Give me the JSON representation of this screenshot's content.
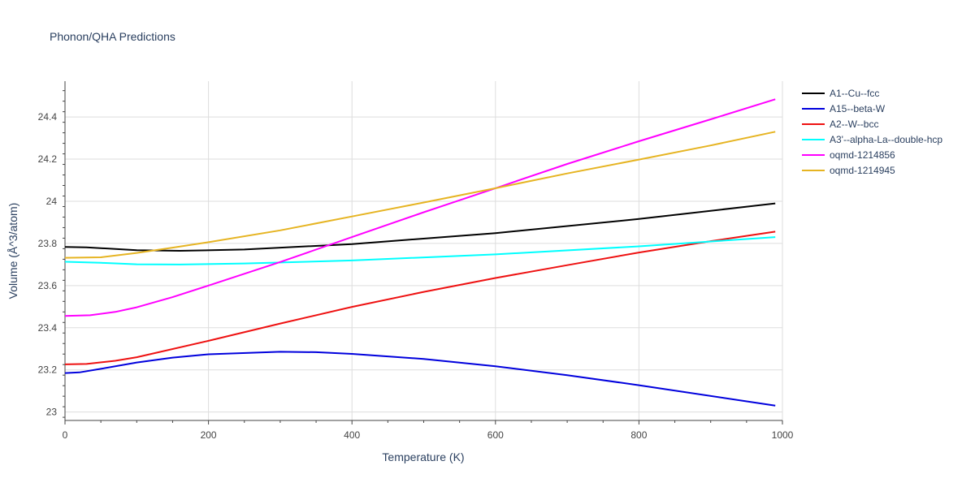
{
  "chart_data": {
    "type": "line",
    "title": "Phonon/QHA Predictions",
    "xlabel": "Temperature (K)",
    "ylabel": "Volume (Å^3/atom)",
    "xlim": [
      0,
      1000
    ],
    "ylim": [
      22.96,
      24.57
    ],
    "xticks": [
      0,
      200,
      400,
      600,
      800,
      1000
    ],
    "yticks": [
      23,
      23.2,
      23.4,
      23.6,
      23.8,
      24,
      24.2,
      24.4
    ],
    "xtick_labels": [
      "0",
      "200",
      "400",
      "600",
      "800",
      "1000"
    ],
    "ytick_labels": [
      "23",
      "23.2",
      "23.4",
      "23.6",
      "23.8",
      "24",
      "24.2",
      "24.4"
    ],
    "grid": true,
    "legend_position": "right",
    "series": [
      {
        "name": "A1--Cu--fcc",
        "color": "#000000",
        "x": [
          0,
          30,
          100,
          160,
          250,
          400,
          600,
          800,
          990
        ],
        "y": [
          23.783,
          23.781,
          23.768,
          23.765,
          23.771,
          23.797,
          23.849,
          23.916,
          23.99
        ]
      },
      {
        "name": "A15--beta-W",
        "color": "#0000dd",
        "x": [
          0,
          20,
          50,
          100,
          150,
          200,
          300,
          350,
          400,
          500,
          600,
          700,
          800,
          990
        ],
        "y": [
          23.185,
          23.188,
          23.205,
          23.235,
          23.258,
          23.274,
          23.286,
          23.284,
          23.276,
          23.252,
          23.217,
          23.175,
          23.127,
          23.03
        ]
      },
      {
        "name": "A2--W--bcc",
        "color": "#ee1111",
        "x": [
          0,
          30,
          70,
          100,
          200,
          300,
          400,
          500,
          600,
          700,
          800,
          900,
          990
        ],
        "y": [
          23.226,
          23.228,
          23.243,
          23.26,
          23.338,
          23.42,
          23.499,
          23.57,
          23.636,
          23.697,
          23.757,
          23.811,
          23.856
        ]
      },
      {
        "name": "A3'--alpha-La--double-hcp",
        "color": "#00ffff",
        "x": [
          0,
          50,
          100,
          160,
          250,
          400,
          600,
          800,
          990
        ],
        "y": [
          23.713,
          23.708,
          23.701,
          23.7,
          23.705,
          23.719,
          23.748,
          23.786,
          23.83
        ]
      },
      {
        "name": "oqmd-1214856",
        "color": "#ff00ff",
        "x": [
          0,
          35,
          70,
          100,
          150,
          200,
          300,
          400,
          500,
          600,
          700,
          800,
          900,
          990
        ],
        "y": [
          23.456,
          23.459,
          23.475,
          23.497,
          23.545,
          23.6,
          23.712,
          23.83,
          23.948,
          24.062,
          24.177,
          24.285,
          24.389,
          24.484
        ]
      },
      {
        "name": "oqmd-1214945",
        "color": "#e6b422",
        "x": [
          0,
          50,
          100,
          150,
          200,
          300,
          400,
          500,
          600,
          700,
          800,
          900,
          990
        ],
        "y": [
          23.732,
          23.734,
          23.755,
          23.78,
          23.806,
          23.862,
          23.928,
          23.994,
          24.062,
          24.132,
          24.198,
          24.265,
          24.33
        ]
      }
    ]
  }
}
